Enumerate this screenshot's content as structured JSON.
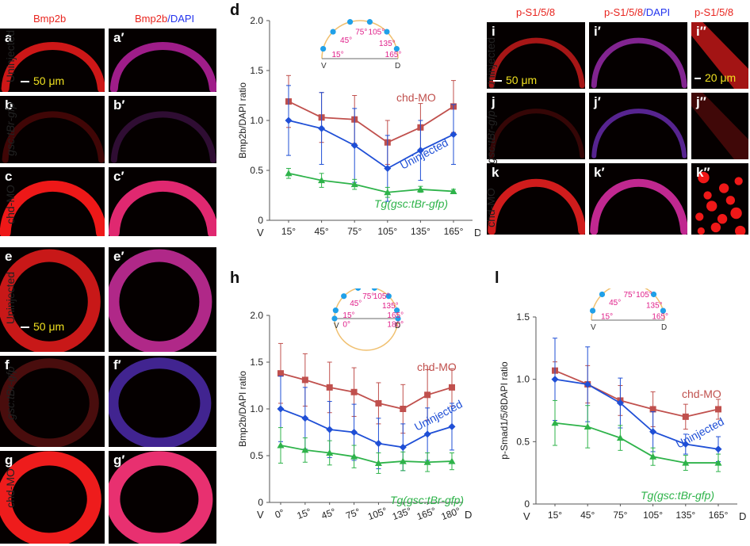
{
  "left": {
    "col_headers": {
      "bmp2b": "Bmp2b",
      "bmp2b_prefix": "Bmp2b",
      "dapi": "/DAPI"
    },
    "rows_top": [
      "Uninjected",
      "gsc:tBr-gfp",
      "chd-MO"
    ],
    "rows_bottom": [
      "Uninjected",
      "gsc:tBr-gfp",
      "chd-MO"
    ],
    "labels_a": [
      "a",
      "a′",
      "b",
      "b′",
      "c",
      "c′"
    ],
    "labels_e": [
      "e",
      "e′",
      "f",
      "f′",
      "g",
      "g′"
    ],
    "scale_top": "50 μm",
    "scale_bottom": "50 μm"
  },
  "right": {
    "col_headers": {
      "ps1": "p-S1/5/8",
      "ps2": "p-S1/5/8",
      "dapi": "/DAPI",
      "ps3": "p-S1/5/8"
    },
    "rows": [
      "Uninjected",
      "gsc:tBr-gfp",
      "chd-MO"
    ],
    "labels": [
      "i",
      "i′",
      "i′′",
      "j",
      "j′",
      "j′′",
      "k",
      "k′",
      "k′′"
    ],
    "scale_a": "50 μm",
    "scale_b": "20 μm"
  },
  "colors": {
    "chd": "#c0504d",
    "uninjected": "#1f4fd6",
    "tg": "#2eb34a",
    "inset_arc": "#f0c070",
    "inset_dot": "#20a0e8",
    "inset_text": "#e0208a"
  },
  "chart_data": [
    {
      "panel": "d",
      "type": "line",
      "ylabel": "Bmp2b/DAPI ratio",
      "x_ends": [
        "V",
        "D"
      ],
      "categories": [
        "15°",
        "45°",
        "75°",
        "105°",
        "135°",
        "165°"
      ],
      "ylim": [
        0,
        2.0
      ],
      "yticks": [
        "0",
        "0.5",
        "1.0",
        "1.5",
        "2.0"
      ],
      "series": [
        {
          "name": "chd-MO",
          "key": "chd",
          "values": [
            1.19,
            1.03,
            1.01,
            0.78,
            0.93,
            1.14
          ],
          "err": [
            0.26,
            0.25,
            0.24,
            0.22,
            0.24,
            0.26
          ]
        },
        {
          "name": "Uninjected",
          "key": "uninjected",
          "values": [
            1.0,
            0.92,
            0.75,
            0.52,
            0.7,
            0.86
          ],
          "err": [
            0.35,
            0.36,
            0.37,
            0.33,
            0.3,
            0.3
          ]
        },
        {
          "name": "Tg(gsc:tBr-gfp)",
          "key": "tg",
          "values": [
            0.47,
            0.4,
            0.36,
            0.28,
            0.31,
            0.29
          ],
          "err": [
            0.05,
            0.07,
            0.05,
            0.05,
            0.03,
            0.02
          ]
        }
      ],
      "inset_angles": [
        "45°",
        "75°",
        "105°",
        "135°",
        "15°",
        "165°"
      ],
      "inset_ends": [
        "V",
        "D"
      ]
    },
    {
      "panel": "h",
      "type": "line",
      "ylabel": "Bmp2b/DAPI ratio",
      "x_ends": [
        "V",
        "D"
      ],
      "categories": [
        "0°",
        "15°",
        "45°",
        "75°",
        "105°",
        "135°",
        "165°",
        "180°"
      ],
      "ylim": [
        0,
        2.0
      ],
      "yticks": [
        "0",
        "0.5",
        "1.0",
        "1.5",
        "2.0"
      ],
      "series": [
        {
          "name": "chd-MO",
          "key": "chd",
          "values": [
            1.38,
            1.31,
            1.23,
            1.18,
            1.06,
            1.0,
            1.15,
            1.23
          ],
          "err": [
            0.32,
            0.28,
            0.27,
            0.26,
            0.22,
            0.26,
            0.27,
            0.2
          ]
        },
        {
          "name": "Uninjected",
          "key": "uninjected",
          "values": [
            1.0,
            0.9,
            0.78,
            0.75,
            0.63,
            0.59,
            0.73,
            0.81
          ],
          "err": [
            0.35,
            0.33,
            0.3,
            0.3,
            0.27,
            0.25,
            0.28,
            0.25
          ]
        },
        {
          "name": "Tg(gsc:tBr-gfp)",
          "key": "tg",
          "values": [
            0.61,
            0.56,
            0.53,
            0.49,
            0.42,
            0.44,
            0.43,
            0.44
          ],
          "err": [
            0.19,
            0.13,
            0.13,
            0.12,
            0.11,
            0.1,
            0.1,
            0.09
          ]
        }
      ],
      "inset_angles": [
        "45°",
        "75°",
        "105°",
        "135°",
        "15°",
        "165°",
        "0°",
        "180°"
      ],
      "inset_ends": [
        "V",
        "D"
      ]
    },
    {
      "panel": "l",
      "type": "line",
      "ylabel": "p-Smad1/5/8DAPI ratio",
      "x_ends": [
        "V",
        "D"
      ],
      "categories": [
        "15°",
        "45°",
        "75°",
        "105°",
        "135°",
        "165°"
      ],
      "ylim": [
        0,
        1.5
      ],
      "yticks": [
        "0",
        "0.5",
        "1.0",
        "1.5"
      ],
      "series": [
        {
          "name": "chd-MO",
          "key": "chd",
          "values": [
            1.07,
            0.96,
            0.83,
            0.76,
            0.7,
            0.76
          ],
          "err": [
            0.07,
            0.15,
            0.12,
            0.14,
            0.1,
            0.08
          ]
        },
        {
          "name": "Uninjected",
          "key": "uninjected",
          "values": [
            1.0,
            0.96,
            0.81,
            0.58,
            0.48,
            0.44
          ],
          "err": [
            0.33,
            0.3,
            0.2,
            0.16,
            0.08,
            0.1
          ]
        },
        {
          "name": "Tg(gsc:tBr-gfp)",
          "key": "tg",
          "values": [
            0.65,
            0.62,
            0.53,
            0.38,
            0.33,
            0.33
          ],
          "err": [
            0.18,
            0.17,
            0.1,
            0.07,
            0.06,
            0.07
          ]
        }
      ],
      "inset_angles": [
        "45°",
        "75°",
        "105°",
        "135°",
        "15°",
        "165°"
      ],
      "inset_ends": [
        "V",
        "D"
      ]
    }
  ]
}
